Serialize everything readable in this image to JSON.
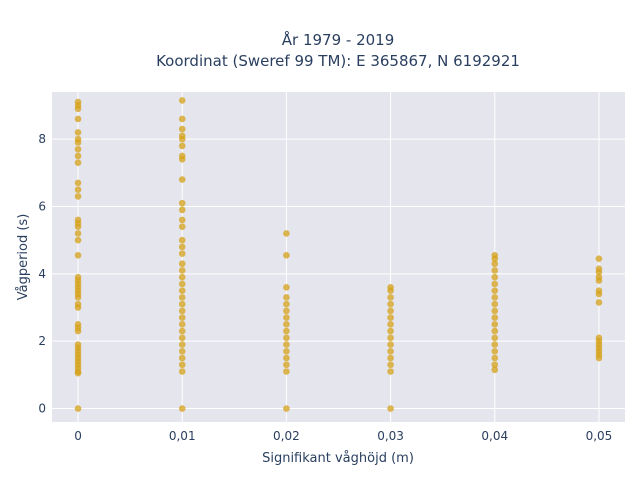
{
  "chart_data": {
    "type": "scatter",
    "title_lines": [
      "År 1979 - 2019",
      "Koordinat (Sweref 99 TM): E 365867, N 6192921"
    ],
    "xlabel": "Signifikant våghöjd (m)",
    "ylabel": "Vågperiod (s)",
    "x_ticks": [
      0,
      0.01,
      0.02,
      0.03,
      0.04,
      0.05
    ],
    "x_tick_labels": [
      "0",
      "0,01",
      "0,02",
      "0,03",
      "0,04",
      "0,05"
    ],
    "y_ticks": [
      0,
      2,
      4,
      6,
      8
    ],
    "y_tick_labels": [
      "0",
      "2",
      "4",
      "6",
      "8"
    ],
    "xlim": [
      -0.0025,
      0.0525
    ],
    "ylim": [
      -0.4,
      9.4
    ],
    "grid": true,
    "marker_color": "#d4a017",
    "plot_bg": "#e5e5ee",
    "points": [
      [
        0,
        0
      ],
      [
        0,
        1.05
      ],
      [
        0,
        1.1
      ],
      [
        0,
        1.2
      ],
      [
        0,
        1.3
      ],
      [
        0,
        1.4
      ],
      [
        0,
        1.5
      ],
      [
        0,
        1.6
      ],
      [
        0,
        1.7
      ],
      [
        0,
        1.8
      ],
      [
        0,
        1.9
      ],
      [
        0,
        2.3
      ],
      [
        0,
        2.4
      ],
      [
        0,
        2.5
      ],
      [
        0,
        3.0
      ],
      [
        0,
        3.1
      ],
      [
        0,
        3.3
      ],
      [
        0,
        3.4
      ],
      [
        0,
        3.5
      ],
      [
        0,
        3.6
      ],
      [
        0,
        3.7
      ],
      [
        0,
        3.8
      ],
      [
        0,
        3.9
      ],
      [
        0,
        4.55
      ],
      [
        0,
        5.0
      ],
      [
        0,
        5.2
      ],
      [
        0,
        5.4
      ],
      [
        0,
        5.5
      ],
      [
        0,
        5.6
      ],
      [
        0,
        6.3
      ],
      [
        0,
        6.5
      ],
      [
        0,
        6.7
      ],
      [
        0,
        7.3
      ],
      [
        0,
        7.5
      ],
      [
        0,
        7.7
      ],
      [
        0,
        7.9
      ],
      [
        0,
        8.0
      ],
      [
        0,
        8.2
      ],
      [
        0,
        8.6
      ],
      [
        0,
        8.9
      ],
      [
        0,
        9.0
      ],
      [
        0,
        9.1
      ],
      [
        0.01,
        0
      ],
      [
        0.01,
        1.1
      ],
      [
        0.01,
        1.3
      ],
      [
        0.01,
        1.5
      ],
      [
        0.01,
        1.7
      ],
      [
        0.01,
        1.9
      ],
      [
        0.01,
        2.1
      ],
      [
        0.01,
        2.3
      ],
      [
        0.01,
        2.5
      ],
      [
        0.01,
        2.7
      ],
      [
        0.01,
        2.9
      ],
      [
        0.01,
        3.1
      ],
      [
        0.01,
        3.3
      ],
      [
        0.01,
        3.5
      ],
      [
        0.01,
        3.7
      ],
      [
        0.01,
        3.9
      ],
      [
        0.01,
        4.1
      ],
      [
        0.01,
        4.3
      ],
      [
        0.01,
        4.6
      ],
      [
        0.01,
        4.8
      ],
      [
        0.01,
        5.0
      ],
      [
        0.01,
        5.4
      ],
      [
        0.01,
        5.6
      ],
      [
        0.01,
        5.9
      ],
      [
        0.01,
        6.1
      ],
      [
        0.01,
        6.8
      ],
      [
        0.01,
        7.4
      ],
      [
        0.01,
        7.5
      ],
      [
        0.01,
        7.8
      ],
      [
        0.01,
        8.0
      ],
      [
        0.01,
        8.1
      ],
      [
        0.01,
        8.3
      ],
      [
        0.01,
        8.6
      ],
      [
        0.01,
        9.15
      ],
      [
        0.02,
        0
      ],
      [
        0.02,
        1.1
      ],
      [
        0.02,
        1.3
      ],
      [
        0.02,
        1.5
      ],
      [
        0.02,
        1.7
      ],
      [
        0.02,
        1.9
      ],
      [
        0.02,
        2.1
      ],
      [
        0.02,
        2.3
      ],
      [
        0.02,
        2.5
      ],
      [
        0.02,
        2.7
      ],
      [
        0.02,
        2.9
      ],
      [
        0.02,
        3.1
      ],
      [
        0.02,
        3.3
      ],
      [
        0.02,
        3.6
      ],
      [
        0.02,
        4.55
      ],
      [
        0.02,
        5.2
      ],
      [
        0.03,
        0
      ],
      [
        0.03,
        1.1
      ],
      [
        0.03,
        1.3
      ],
      [
        0.03,
        1.5
      ],
      [
        0.03,
        1.7
      ],
      [
        0.03,
        1.9
      ],
      [
        0.03,
        2.1
      ],
      [
        0.03,
        2.3
      ],
      [
        0.03,
        2.5
      ],
      [
        0.03,
        2.7
      ],
      [
        0.03,
        2.9
      ],
      [
        0.03,
        3.1
      ],
      [
        0.03,
        3.3
      ],
      [
        0.03,
        3.5
      ],
      [
        0.03,
        3.6
      ],
      [
        0.04,
        1.15
      ],
      [
        0.04,
        1.3
      ],
      [
        0.04,
        1.5
      ],
      [
        0.04,
        1.7
      ],
      [
        0.04,
        1.9
      ],
      [
        0.04,
        2.1
      ],
      [
        0.04,
        2.3
      ],
      [
        0.04,
        2.5
      ],
      [
        0.04,
        2.7
      ],
      [
        0.04,
        2.9
      ],
      [
        0.04,
        3.1
      ],
      [
        0.04,
        3.3
      ],
      [
        0.04,
        3.5
      ],
      [
        0.04,
        3.7
      ],
      [
        0.04,
        3.9
      ],
      [
        0.04,
        4.1
      ],
      [
        0.04,
        4.3
      ],
      [
        0.04,
        4.45
      ],
      [
        0.04,
        4.55
      ],
      [
        0.05,
        1.5
      ],
      [
        0.05,
        1.6
      ],
      [
        0.05,
        1.7
      ],
      [
        0.05,
        1.8
      ],
      [
        0.05,
        1.9
      ],
      [
        0.05,
        2.0
      ],
      [
        0.05,
        2.1
      ],
      [
        0.05,
        3.15
      ],
      [
        0.05,
        3.4
      ],
      [
        0.05,
        3.5
      ],
      [
        0.05,
        3.8
      ],
      [
        0.05,
        3.9
      ],
      [
        0.05,
        4.05
      ],
      [
        0.05,
        4.15
      ],
      [
        0.05,
        4.45
      ]
    ]
  }
}
